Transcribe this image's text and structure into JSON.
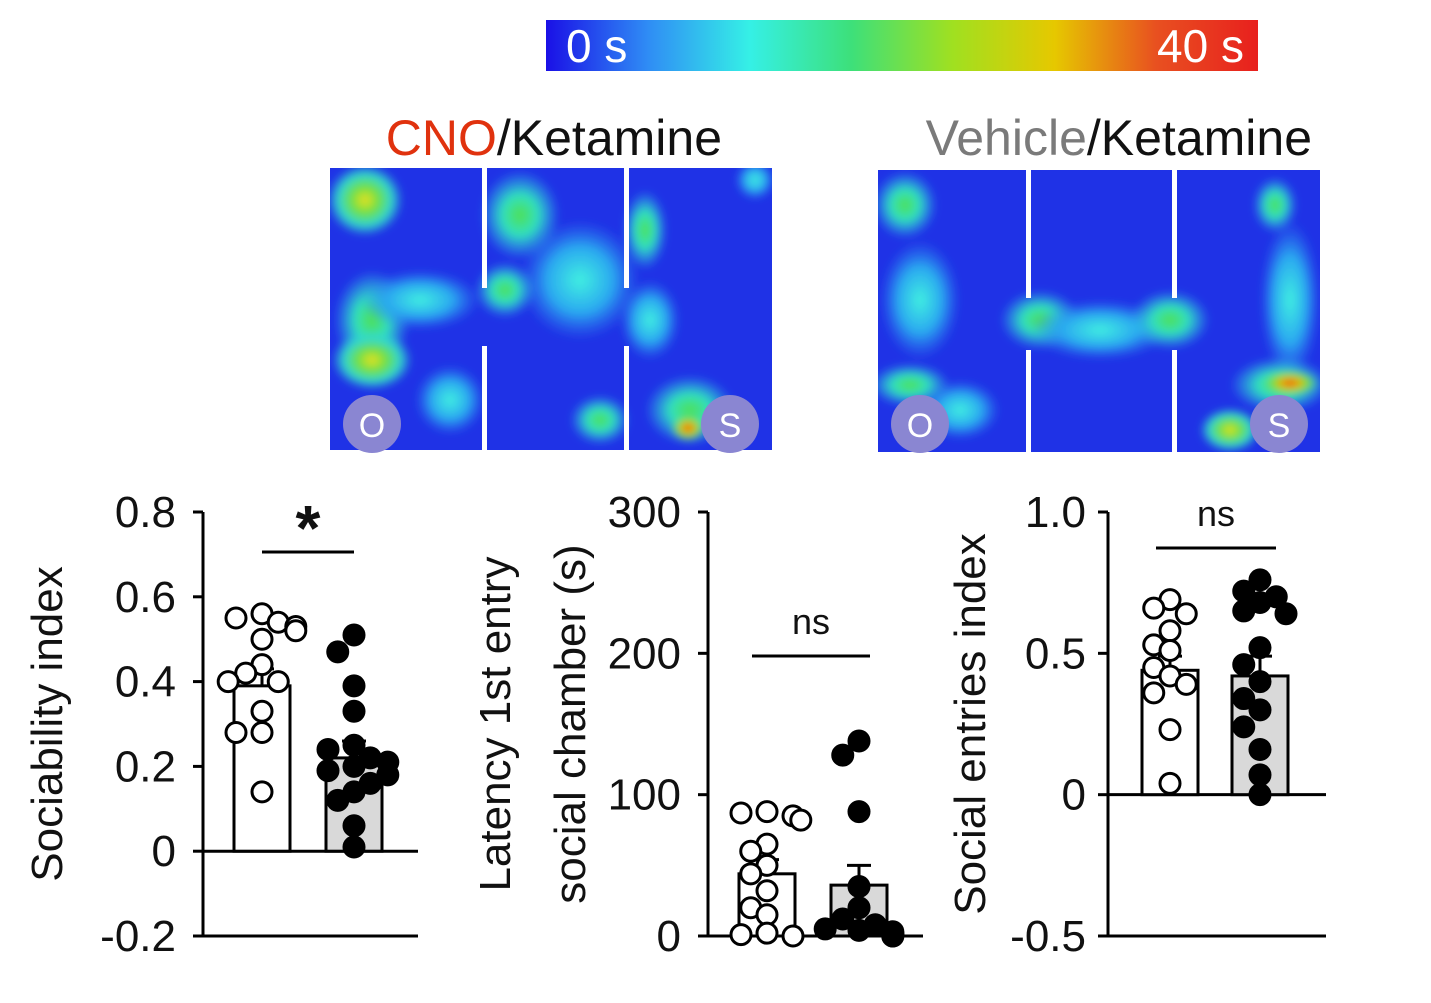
{
  "colorbar": {
    "min_label": "0 s",
    "max_label": "40 s",
    "colors": [
      "#1a10e6",
      "#2f8cf5",
      "#35f0e6",
      "#3de07a",
      "#a0e020",
      "#e6c800",
      "#e85020",
      "#e8201e"
    ]
  },
  "heatmaps": [
    {
      "title_part1": "CNO",
      "title_part2": "/Ketamine",
      "title_part1_color": "#e0320e",
      "title_part2_color": "#111111",
      "left_zone": "O",
      "right_zone": "S"
    },
    {
      "title_part1": "Vehicle",
      "title_part2": "/Ketamine",
      "title_part1_color": "#7a7a7a",
      "title_part2_color": "#111111",
      "left_zone": "O",
      "right_zone": "S"
    }
  ],
  "chart_data": [
    {
      "type": "bar",
      "ylabel": "Sociability index",
      "ylabel_lines": [
        "Sociability index"
      ],
      "ylim": [
        -0.2,
        0.8
      ],
      "yticks": [
        -0.2,
        0,
        0.2,
        0.4,
        0.6,
        0.8
      ],
      "ytick_labels": [
        "-0.2",
        "0",
        "0.2",
        "0.4",
        "0.6",
        "0.8"
      ],
      "significance": "*",
      "groups": [
        {
          "fill": "#ffffff",
          "dot_fill": "#ffffff",
          "mean": 0.39,
          "sem": 0.04,
          "points": [
            0.56,
            0.55,
            0.54,
            0.53,
            0.52,
            0.5,
            0.44,
            0.42,
            0.4,
            0.4,
            0.33,
            0.28,
            0.28,
            0.14
          ]
        },
        {
          "fill": "#d9d9d9",
          "dot_fill": "#000000",
          "mean": 0.22,
          "sem": 0.04,
          "points": [
            0.51,
            0.47,
            0.39,
            0.33,
            0.25,
            0.24,
            0.22,
            0.21,
            0.2,
            0.19,
            0.18,
            0.16,
            0.14,
            0.12,
            0.06,
            0.01
          ]
        }
      ]
    },
    {
      "type": "bar",
      "ylabel": "Latency 1st entry social chamber (s)",
      "ylabel_lines": [
        "Latency 1st entry",
        "social chamber (s)"
      ],
      "ylim": [
        0,
        300
      ],
      "yticks": [
        0,
        100,
        200,
        300
      ],
      "ytick_labels": [
        "0",
        "100",
        "200",
        "300"
      ],
      "significance": "ns",
      "groups": [
        {
          "fill": "#ffffff",
          "dot_fill": "#ffffff",
          "mean": 44,
          "sem": 10,
          "points": [
            88,
            87,
            85,
            82,
            65,
            60,
            50,
            44,
            32,
            20,
            15,
            2,
            1,
            0
          ]
        },
        {
          "fill": "#d9d9d9",
          "dot_fill": "#000000",
          "mean": 36,
          "sem": 14,
          "points": [
            138,
            128,
            88,
            35,
            20,
            12,
            8,
            5,
            4,
            3,
            2,
            1,
            1,
            0,
            0
          ]
        }
      ]
    },
    {
      "type": "bar",
      "ylabel": "Social entries index",
      "ylabel_lines": [
        "Social entries index"
      ],
      "ylim": [
        -0.5,
        1.0
      ],
      "yticks": [
        -0.5,
        0,
        0.5,
        1.0
      ],
      "ytick_labels": [
        "-0.5",
        "0",
        "0.5",
        "1.0"
      ],
      "significance": "ns",
      "groups": [
        {
          "fill": "#ffffff",
          "dot_fill": "#ffffff",
          "mean": 0.44,
          "sem": 0.05,
          "points": [
            0.69,
            0.66,
            0.64,
            0.58,
            0.53,
            0.51,
            0.45,
            0.42,
            0.39,
            0.36,
            0.23,
            0.04
          ]
        },
        {
          "fill": "#d9d9d9",
          "dot_fill": "#000000",
          "mean": 0.42,
          "sem": 0.07,
          "points": [
            0.76,
            0.72,
            0.7,
            0.68,
            0.65,
            0.64,
            0.52,
            0.46,
            0.4,
            0.34,
            0.3,
            0.24,
            0.16,
            0.07,
            0.0
          ]
        }
      ]
    }
  ]
}
